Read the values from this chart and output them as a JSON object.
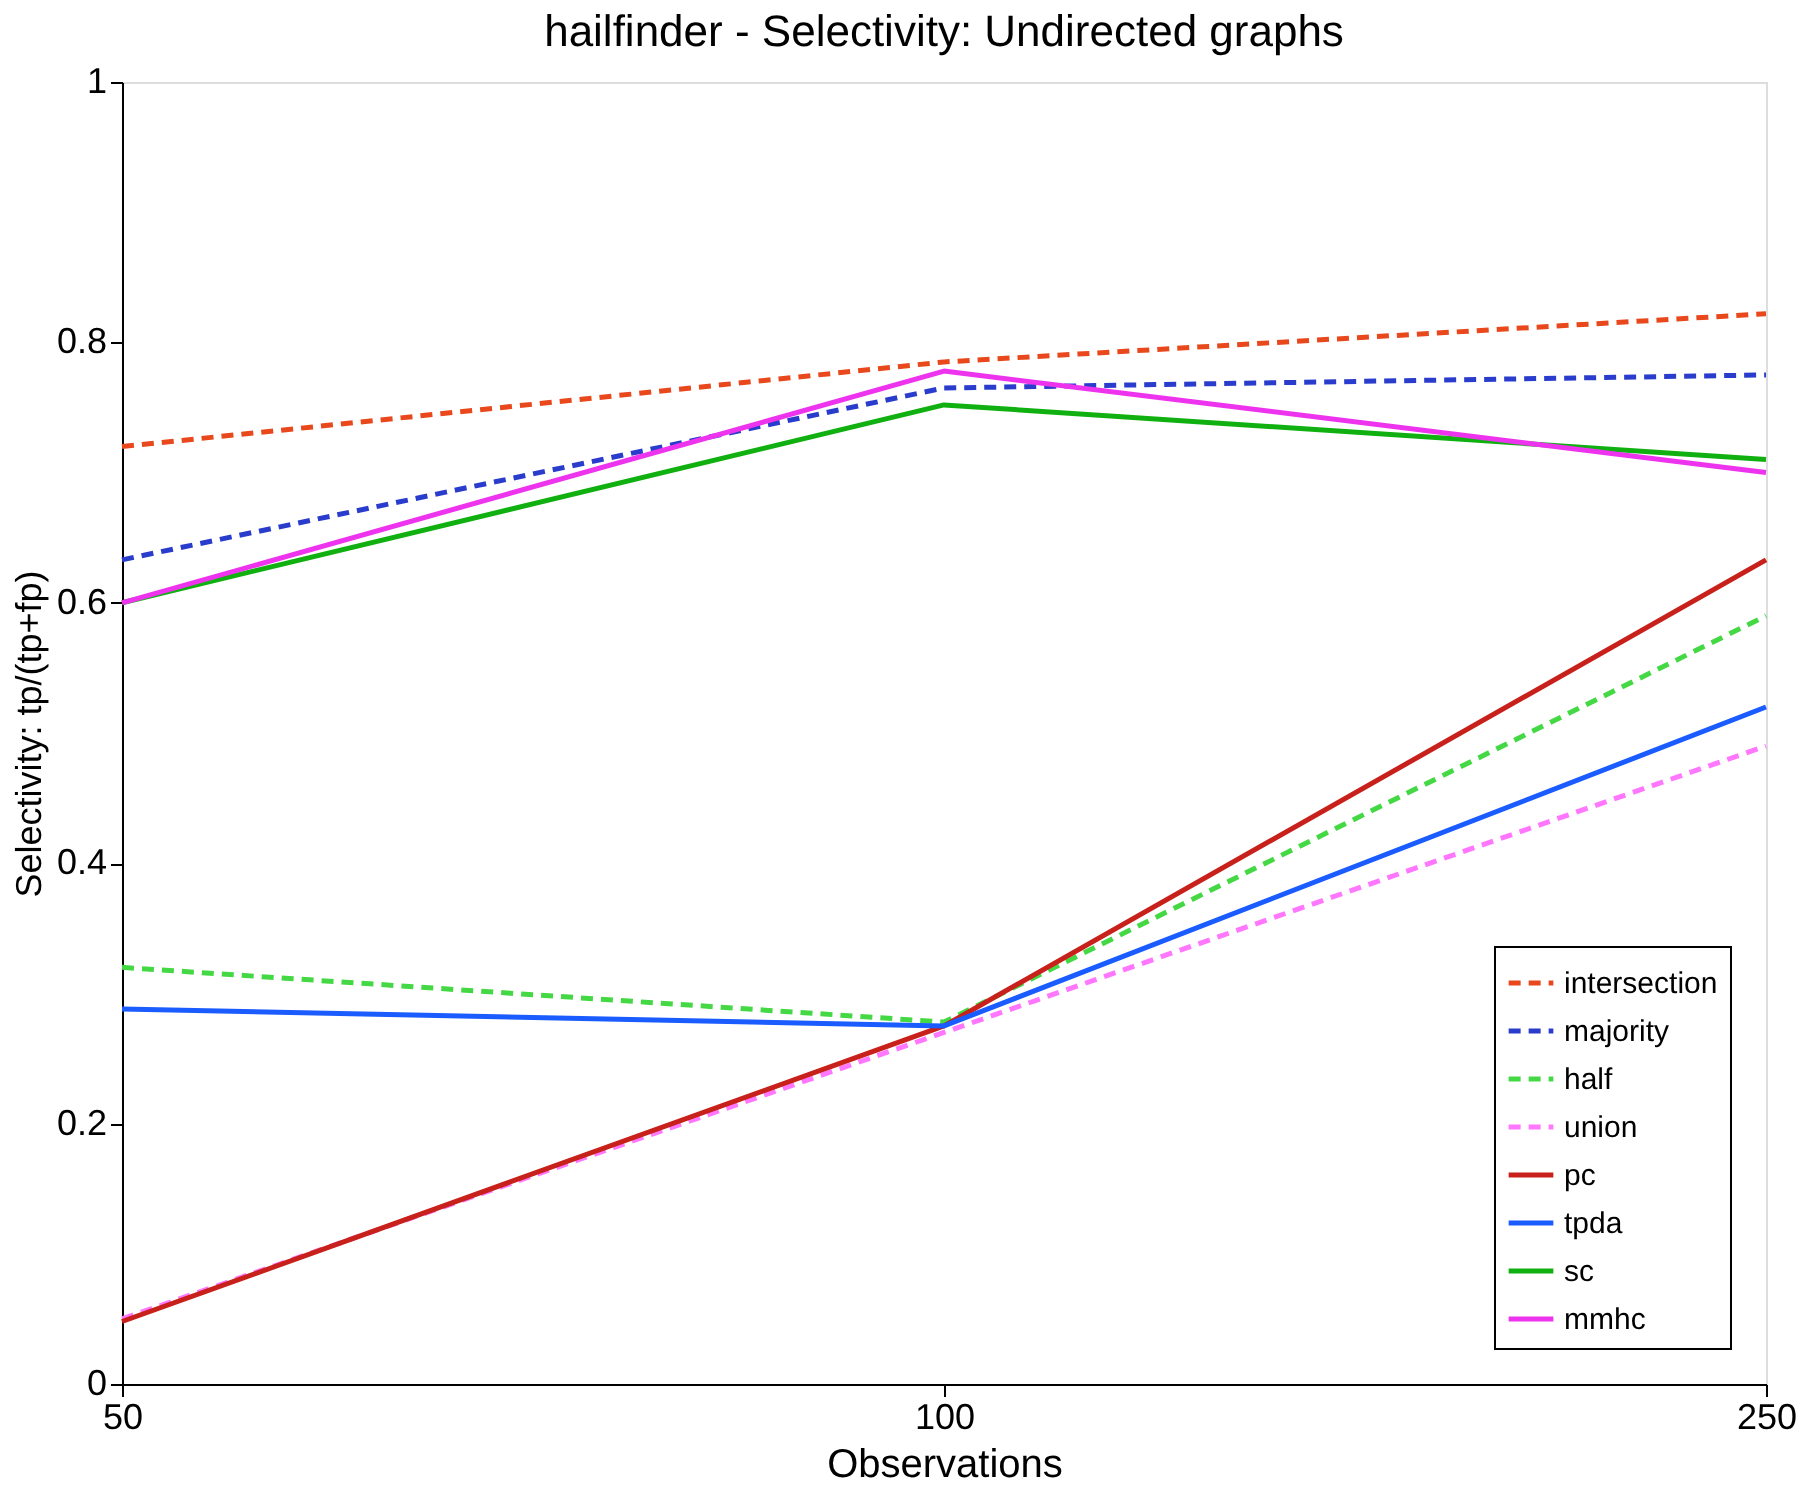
{
  "chart_data": {
    "type": "line",
    "title": "hailfinder - Selectivity: Undirected graphs",
    "xlabel": "Observations",
    "ylabel": "Selectivity: tp/(tp+fp)",
    "categories": [
      "50",
      "100",
      "250"
    ],
    "ylim": [
      0,
      1
    ],
    "yticks": [
      0,
      0.2,
      0.4,
      0.6,
      0.8,
      1
    ],
    "grid": false,
    "legend": "bottom right",
    "marker": "none",
    "series": [
      {
        "name": "intersection",
        "color": "#e8481c",
        "line_style": "dashed",
        "values": [
          0.72,
          0.785,
          0.822
        ]
      },
      {
        "name": "majority",
        "color": "#2a3ccc",
        "line_style": "dashed",
        "values": [
          0.633,
          0.765,
          0.775
        ]
      },
      {
        "name": "half",
        "color": "#44d944",
        "line_style": "dashed",
        "values": [
          0.32,
          0.278,
          0.59
        ]
      },
      {
        "name": "union",
        "color": "#ff77ff",
        "line_style": "dashed",
        "values": [
          0.05,
          0.27,
          0.49
        ]
      },
      {
        "name": "pc",
        "color": "#c8201a",
        "line_style": "solid",
        "values": [
          0.048,
          0.275,
          0.633
        ]
      },
      {
        "name": "tpda",
        "color": "#1a5cff",
        "line_style": "solid",
        "values": [
          0.288,
          0.275,
          0.52
        ]
      },
      {
        "name": "sc",
        "color": "#10b010",
        "line_style": "solid",
        "values": [
          0.6,
          0.752,
          0.71
        ]
      },
      {
        "name": "mmhc",
        "color": "#ee33ee",
        "line_style": "solid",
        "values": [
          0.6,
          0.778,
          0.7
        ]
      }
    ]
  }
}
